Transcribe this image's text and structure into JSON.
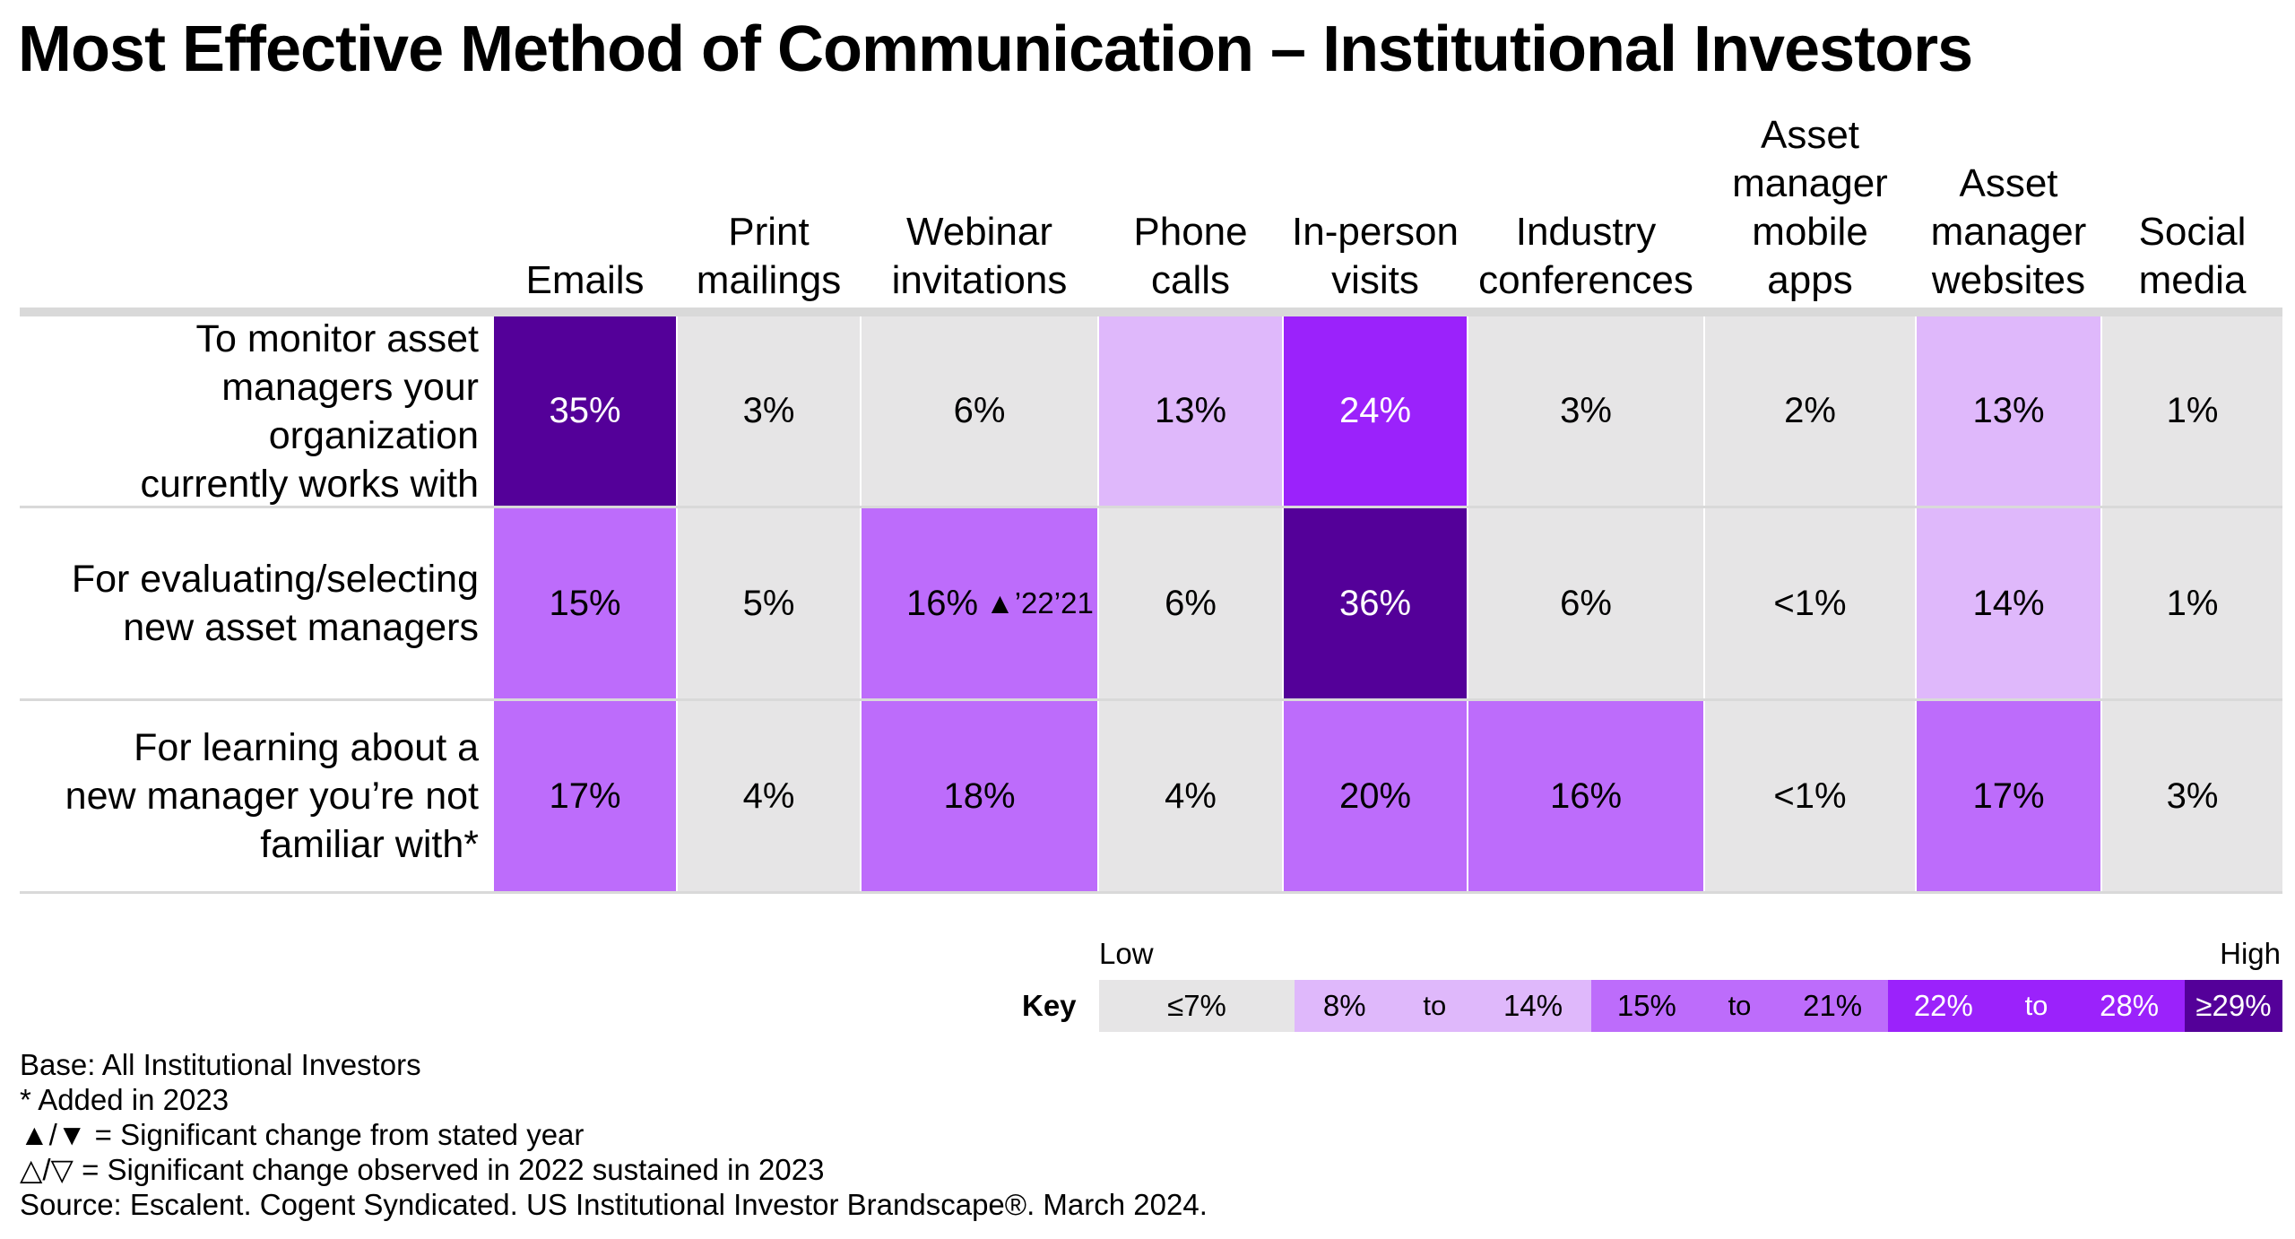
{
  "chart_data": {
    "type": "table",
    "title": "Most Effective Method of Communication – Institutional Investors",
    "columns": [
      {
        "lines": [
          "Emails"
        ]
      },
      {
        "lines": [
          "Print",
          "mailings"
        ]
      },
      {
        "lines": [
          "Webinar",
          "invitations"
        ]
      },
      {
        "lines": [
          "Phone",
          "calls"
        ]
      },
      {
        "lines": [
          "In-person",
          "visits"
        ]
      },
      {
        "lines": [
          "Industry",
          "conferences"
        ]
      },
      {
        "lines": [
          "Asset",
          "manager",
          "mobile",
          "apps"
        ]
      },
      {
        "lines": [
          "Asset",
          "manager",
          "websites"
        ]
      },
      {
        "lines": [
          "Social",
          "media"
        ]
      }
    ],
    "rows": [
      {
        "lines": [
          "To monitor asset",
          "managers your",
          "organization",
          "currently works with"
        ],
        "cells": [
          {
            "text": "35%",
            "value": 35,
            "sig": ""
          },
          {
            "text": "3%",
            "value": 3,
            "sig": ""
          },
          {
            "text": "6%",
            "value": 6,
            "sig": ""
          },
          {
            "text": "13%",
            "value": 13,
            "sig": ""
          },
          {
            "text": "24%",
            "value": 24,
            "sig": ""
          },
          {
            "text": "3%",
            "value": 3,
            "sig": ""
          },
          {
            "text": "2%",
            "value": 2,
            "sig": ""
          },
          {
            "text": "13%",
            "value": 13,
            "sig": ""
          },
          {
            "text": "1%",
            "value": 1,
            "sig": ""
          }
        ]
      },
      {
        "lines": [
          "For evaluating/selecting",
          "new asset managers"
        ],
        "cells": [
          {
            "text": "15%",
            "value": 15,
            "sig": ""
          },
          {
            "text": "5%",
            "value": 5,
            "sig": ""
          },
          {
            "text": "16%",
            "value": 16,
            "sig": "▲’22’21"
          },
          {
            "text": "6%",
            "value": 6,
            "sig": ""
          },
          {
            "text": "36%",
            "value": 36,
            "sig": ""
          },
          {
            "text": "6%",
            "value": 6,
            "sig": ""
          },
          {
            "text": "<1%",
            "value": 0.5,
            "sig": ""
          },
          {
            "text": "14%",
            "value": 14,
            "sig": ""
          },
          {
            "text": "1%",
            "value": 1,
            "sig": ""
          }
        ]
      },
      {
        "lines": [
          "For learning about a",
          "new manager you’re not",
          "familiar with*"
        ],
        "cells": [
          {
            "text": "17%",
            "value": 17,
            "sig": ""
          },
          {
            "text": "4%",
            "value": 4,
            "sig": ""
          },
          {
            "text": "18%",
            "value": 18,
            "sig": ""
          },
          {
            "text": "4%",
            "value": 4,
            "sig": ""
          },
          {
            "text": "20%",
            "value": 20,
            "sig": ""
          },
          {
            "text": "16%",
            "value": 16,
            "sig": ""
          },
          {
            "text": "<1%",
            "value": 0.5,
            "sig": ""
          },
          {
            "text": "17%",
            "value": 17,
            "sig": ""
          },
          {
            "text": "3%",
            "value": 3,
            "sig": ""
          }
        ]
      }
    ],
    "legend": {
      "label": "Key",
      "low": "Low",
      "high": "High",
      "connector": "to",
      "bands": [
        {
          "from": "≤7%",
          "to": "",
          "max": 7,
          "color": "#e6e5e6",
          "text_color": "#000000"
        },
        {
          "from": "8%",
          "to": "14%",
          "max": 14,
          "color": "#dfb8fb",
          "text_color": "#000000"
        },
        {
          "from": "15%",
          "to": "21%",
          "max": 21,
          "color": "#bd6cfb",
          "text_color": "#000000"
        },
        {
          "from": "22%",
          "to": "28%",
          "max": 28,
          "color": "#9b22fb",
          "text_color": "#ffffff"
        },
        {
          "from": "≥29%",
          "to": "",
          "max": 100,
          "color": "#540099",
          "text_color": "#ffffff"
        }
      ]
    }
  },
  "notes": [
    "Base: All Institutional Investors",
    "* Added in 2023",
    "▲/▼ = Significant change from stated year",
    "△/▽ = Significant change observed in 2022 sustained in 2023",
    "Source: Escalent. Cogent Syndicated. US Institutional Investor Brandscape®. March 2024."
  ]
}
